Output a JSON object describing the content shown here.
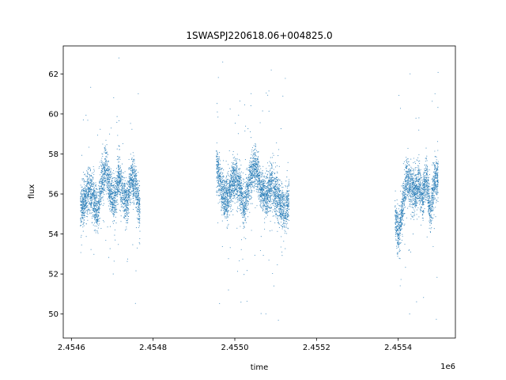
{
  "chart_data": {
    "type": "scatter",
    "title": "1SWASPJ220618.06+004825.0",
    "xlabel": "time",
    "ylabel": "flux",
    "x_offset_label": "1e6",
    "xlim": [
      2454580,
      2455540
    ],
    "ylim": [
      48.8,
      63.4
    ],
    "x_ticks": [
      {
        "value": 2454600,
        "label": "2.4546"
      },
      {
        "value": 2454800,
        "label": "2.4548"
      },
      {
        "value": 2455000,
        "label": "2.4550"
      },
      {
        "value": 2455200,
        "label": "2.4552"
      },
      {
        "value": 2455400,
        "label": "2.4554"
      }
    ],
    "y_ticks": [
      {
        "value": 50,
        "label": "50"
      },
      {
        "value": 52,
        "label": "52"
      },
      {
        "value": 54,
        "label": "54"
      },
      {
        "value": 56,
        "label": "56"
      },
      {
        "value": 58,
        "label": "58"
      },
      {
        "value": 60,
        "label": "60"
      },
      {
        "value": 62,
        "label": "62"
      }
    ],
    "grid": false,
    "marker_color": "#1f77b4",
    "series": [
      {
        "segments": [
          {
            "x_start": 2454622,
            "x_end": 2454768,
            "flux": [
              55.2,
              55.6,
              56.3,
              55.8,
              55.0,
              56.6,
              57.3,
              56.2,
              55.5,
              56.9,
              56.0,
              55.6,
              56.8,
              56.4,
              55.1
            ]
          },
          {
            "x_start": 2454955,
            "x_end": 2455133,
            "flux": [
              57.6,
              56.0,
              55.8,
              56.7,
              56.5,
              55.3,
              56.8,
              57.4,
              56.2,
              55.9,
              56.5,
              55.7,
              55.2,
              55.6
            ]
          },
          {
            "x_start": 2455392,
            "x_end": 2455498,
            "flux": [
              54.9,
              53.9,
              55.4,
              56.9,
              56.4,
              56.0,
              56.5,
              55.8,
              56.9,
              55.0,
              56.6,
              56.9
            ]
          }
        ]
      }
    ]
  }
}
